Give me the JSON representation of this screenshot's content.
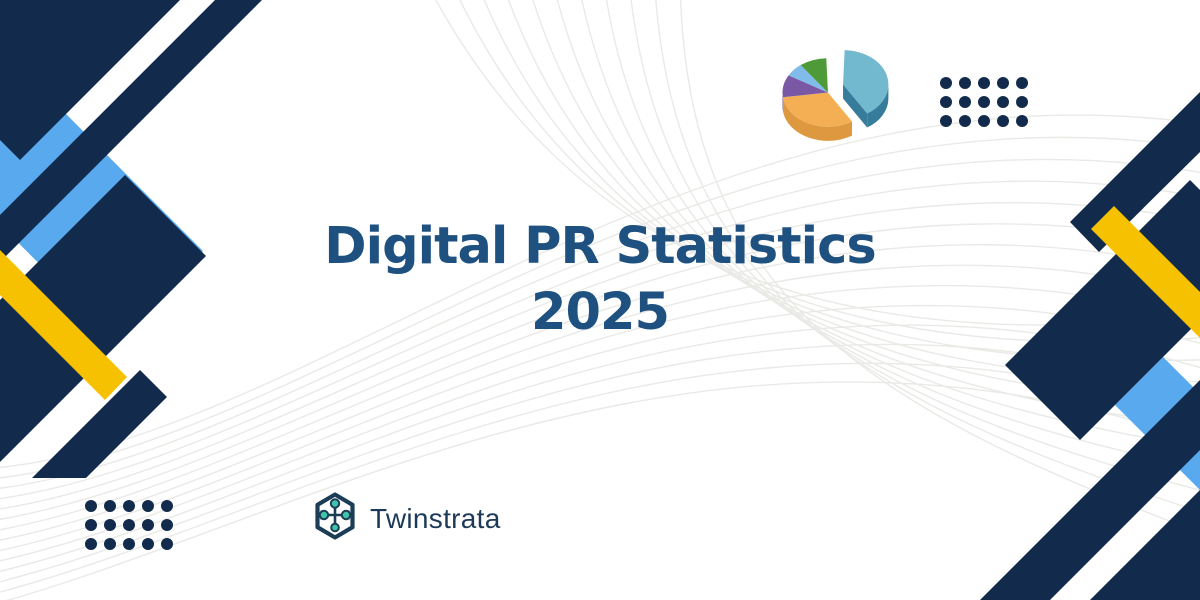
{
  "banner": {
    "title_line1": "Digital PR Statistics",
    "title_line2": "2025"
  },
  "brand": {
    "name": "Twinstrata"
  },
  "colors": {
    "navy": "#122A4C",
    "light_blue": "#59A9EF",
    "yellow": "#F5C100",
    "title_blue": "#1E5180",
    "logo_text": "#1C3A57",
    "logo_teal": "#3FC6AA",
    "mesh_gray": "#E9E9E6",
    "background": "#FFFFFF"
  },
  "pie_illustration": {
    "type": "decorative-3d-pie",
    "slices": [
      {
        "name": "teal",
        "share": 41,
        "top": "#72B8CF",
        "side": "#387C9B",
        "exploded": true
      },
      {
        "name": "orange",
        "share": 32,
        "top": "#F4AF55",
        "side": "#DD9840",
        "exploded": false
      },
      {
        "name": "purple",
        "share": 11,
        "top": "#7A58A6",
        "side": "#5C3F82",
        "exploded": false
      },
      {
        "name": "light-blue",
        "share": 6,
        "top": "#7FBCE9",
        "side": "#5E9CCE",
        "exploded": false
      },
      {
        "name": "green",
        "share": 10,
        "top": "#4E9938",
        "side": "#3A7A28",
        "exploded": false
      }
    ]
  },
  "decor": {
    "dot_grid": {
      "rows": 3,
      "cols": 5
    }
  }
}
